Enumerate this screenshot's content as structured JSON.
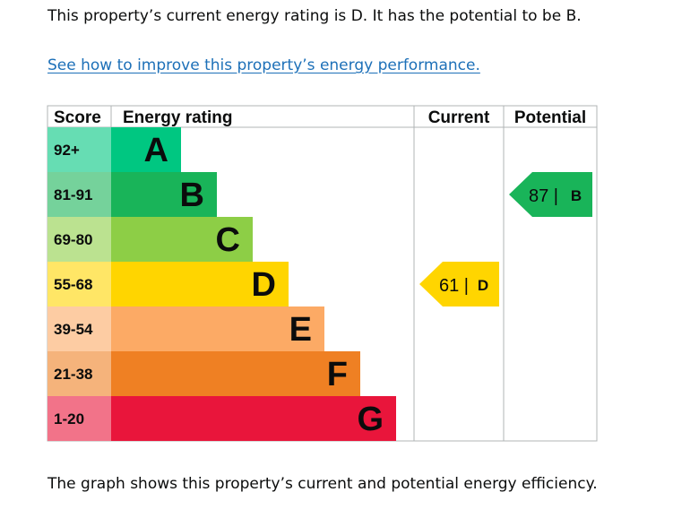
{
  "intro_text": "This property’s current energy rating is D. It has the potential to be B.",
  "improve_link": "See how to improve this property’s energy performance.",
  "footer_text": "The graph shows this property’s current and potential energy efficiency.",
  "chart_data": {
    "type": "bar",
    "headers": {
      "score": "Score",
      "rating": "Energy rating",
      "current": "Current",
      "potential": "Potential"
    },
    "bands": [
      {
        "letter": "A",
        "range": "92+",
        "color": "#00c781",
        "score_color": "#66ddb3",
        "text_color": "#0b0c0c"
      },
      {
        "letter": "B",
        "range": "81-91",
        "color": "#19b459",
        "score_color": "#75d29b",
        "text_color": "#0b0c0c"
      },
      {
        "letter": "C",
        "range": "69-80",
        "color": "#8dce46",
        "score_color": "#bbe290",
        "text_color": "#0b0c0c"
      },
      {
        "letter": "D",
        "range": "55-68",
        "color": "#ffd500",
        "score_color": "#ffe666",
        "text_color": "#0b0c0c"
      },
      {
        "letter": "E",
        "range": "39-54",
        "color": "#fcaa65",
        "score_color": "#fdcca3",
        "text_color": "#0b0c0c"
      },
      {
        "letter": "F",
        "range": "21-38",
        "color": "#ef8023",
        "score_color": "#f5b37b",
        "text_color": "#0b0c0c"
      },
      {
        "letter": "G",
        "range": "1-20",
        "color": "#e9153b",
        "score_color": "#f27389",
        "text_color": "#0b0c0c"
      }
    ],
    "current": {
      "value": 61,
      "letter": "D",
      "color": "#ffd500"
    },
    "potential": {
      "value": 87,
      "letter": "B",
      "color": "#19b459"
    }
  }
}
